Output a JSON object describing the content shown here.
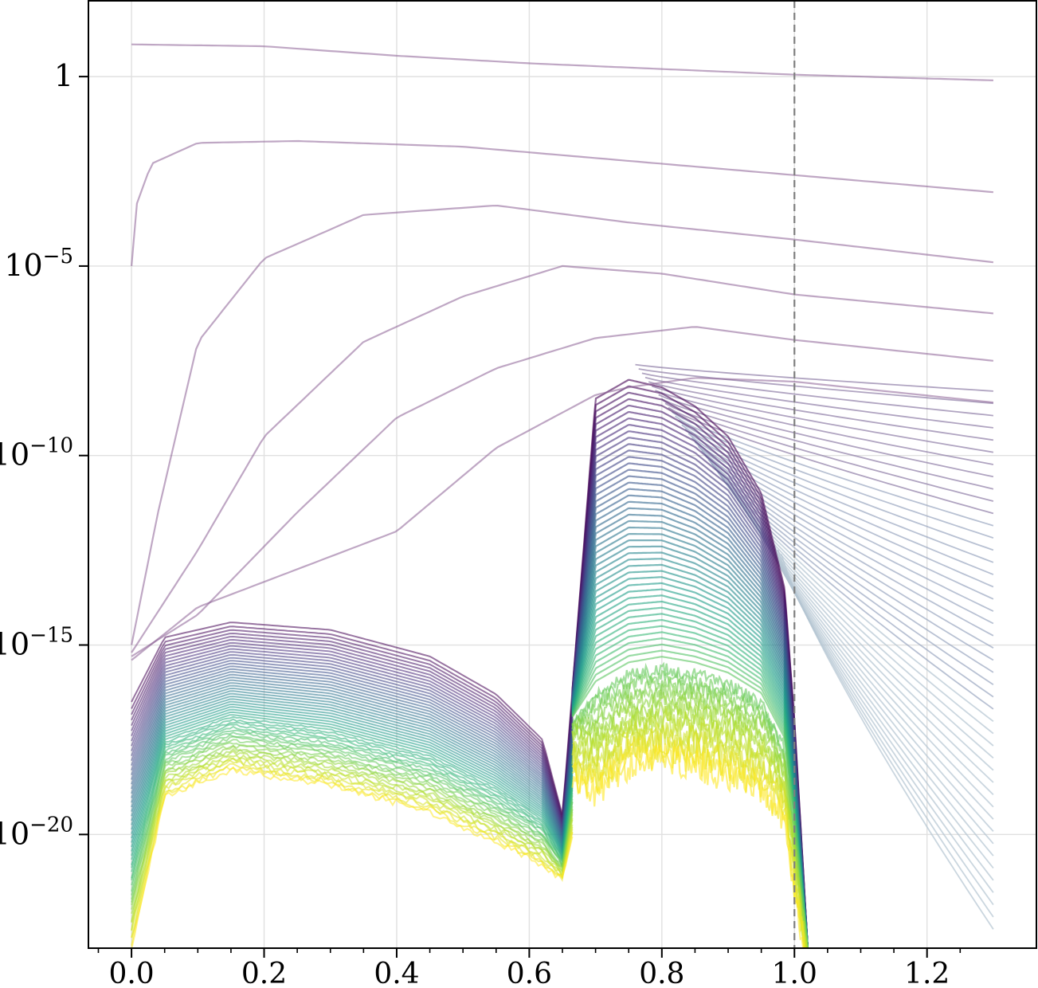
{
  "chart_data": {
    "type": "line",
    "title": "",
    "xlabel": "",
    "ylabel": "",
    "xscale": "linear",
    "yscale": "log",
    "xlim": [
      -0.065,
      1.365
    ],
    "ylim": [
      1e-23,
      100
    ],
    "grid": true,
    "legend": "none",
    "x_ticks": [
      0.0,
      0.2,
      0.4,
      0.6,
      0.8,
      1.0,
      1.2
    ],
    "x_tick_labels": [
      "0.0",
      "0.2",
      "0.4",
      "0.6",
      "0.8",
      "1.0",
      "1.2"
    ],
    "y_ticks": [
      1,
      1e-05,
      1e-10,
      1e-15,
      1e-20
    ],
    "y_tick_labels": [
      {
        "base": "1",
        "exp": ""
      },
      {
        "base": "10",
        "exp": "−5"
      },
      {
        "base": "10",
        "exp": "−10"
      },
      {
        "base": "10",
        "exp": "−15"
      },
      {
        "base": "10",
        "exp": "−20"
      }
    ],
    "reference_line": {
      "axis": "x",
      "value": 1.0,
      "style": "dashed",
      "color": "#808080"
    },
    "colormap": "viridis",
    "x_range_of_curves": [
      0.0,
      1.3
    ],
    "upper_curves_log10_y": [
      {
        "x": [
          0.0,
          0.2,
          0.4,
          0.6,
          0.8,
          1.0,
          1.3
        ],
        "log10_y": [
          0.85,
          0.8,
          0.55,
          0.35,
          0.2,
          0.05,
          -0.1
        ]
      },
      {
        "x": [
          0.0,
          0.005,
          0.03,
          0.1,
          0.25,
          0.5,
          0.8,
          1.0,
          1.3
        ],
        "log10_y": [
          -5.0,
          -3.5,
          -2.3,
          -1.75,
          -1.7,
          -1.85,
          -2.3,
          -2.6,
          -3.05
        ]
      },
      {
        "x": [
          0.0,
          0.04,
          0.1,
          0.2,
          0.35,
          0.55,
          0.75,
          1.0,
          1.3
        ],
        "log10_y": [
          -15.0,
          -11.5,
          -7.0,
          -4.8,
          -3.65,
          -3.4,
          -3.85,
          -4.3,
          -4.9
        ]
      },
      {
        "x": [
          0.0,
          0.1,
          0.2,
          0.35,
          0.5,
          0.65,
          0.8,
          1.0,
          1.3
        ],
        "log10_y": [
          -15.2,
          -12.5,
          -9.5,
          -7.0,
          -5.8,
          -5.0,
          -5.2,
          -5.75,
          -6.25
        ]
      },
      {
        "x": [
          0.0,
          0.1,
          0.25,
          0.4,
          0.55,
          0.7,
          0.85,
          1.0,
          1.3
        ],
        "log10_y": [
          -15.3,
          -14.2,
          -11.5,
          -9.0,
          -7.7,
          -6.9,
          -6.6,
          -6.95,
          -7.5
        ]
      },
      {
        "x": [
          0.0,
          0.1,
          0.25,
          0.4,
          0.55,
          0.7,
          0.75,
          0.85,
          1.0,
          1.3
        ],
        "log10_y": [
          -15.4,
          -14.0,
          -13.0,
          -12.0,
          -9.8,
          -8.4,
          -8.2,
          -7.95,
          -8.05,
          -8.6
        ]
      }
    ],
    "lower_band_log10_y": {
      "x": [
        0.0,
        0.05,
        0.15,
        0.3,
        0.45,
        0.55,
        0.62,
        0.65,
        0.665
      ],
      "top": [
        -16.5,
        -14.8,
        -14.4,
        -14.6,
        -15.3,
        -16.3,
        -17.5,
        -19.5,
        -16.2
      ],
      "bottom": [
        -23.0,
        -19.0,
        -18.3,
        -18.7,
        -19.4,
        -20.2,
        -20.8,
        -21.2,
        -20.0
      ]
    },
    "hump_band_log10_y": {
      "x": [
        0.665,
        0.7,
        0.75,
        0.8,
        0.85,
        0.9,
        0.95,
        0.985,
        1.0,
        1.02
      ],
      "top": [
        -16.2,
        -8.5,
        -8.0,
        -8.2,
        -8.7,
        -9.5,
        -11.0,
        -13.5,
        -17.0,
        -23.0
      ],
      "yellow_top": [
        -17.0,
        -17.0,
        -16.5,
        -16.3,
        -16.4,
        -16.6,
        -17.0,
        -18.0,
        -20.0,
        -23.0
      ],
      "bottom": [
        -20.0,
        -20.5,
        -19.5,
        -19.5,
        -19.7,
        -20.2,
        -20.5,
        -21.0,
        -23.0,
        -23.0
      ]
    },
    "fan_lines": {
      "count": 45,
      "from_log10_y": -8.3,
      "to_log10_y": -22.5,
      "x_end": 1.3
    }
  }
}
